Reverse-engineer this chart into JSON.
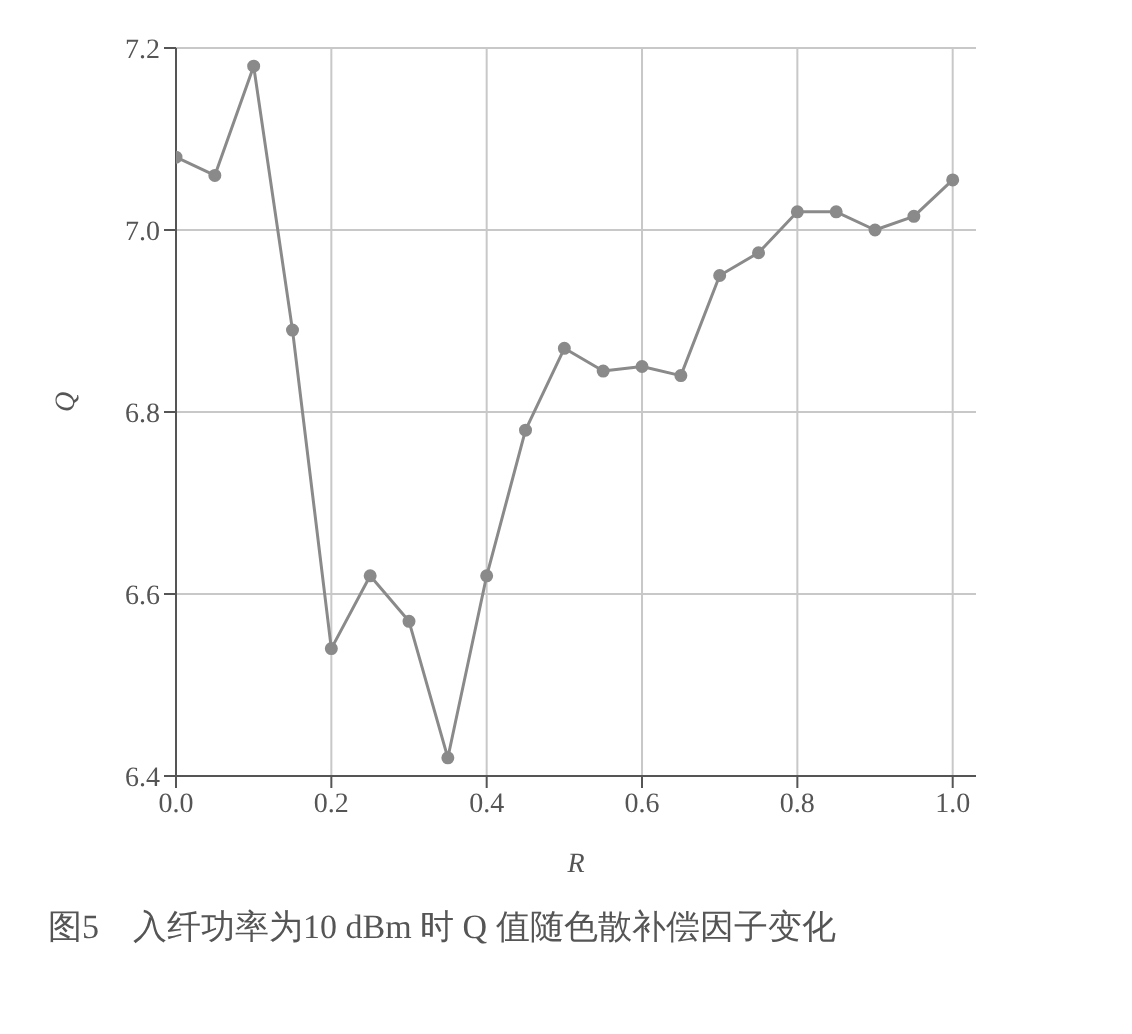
{
  "chart_data": {
    "type": "line",
    "xlabel": "R",
    "ylabel": "Q",
    "annotations": [
      "图5　入纤功率为10 dBm 时 Q 值随色散补偿因子变化"
    ],
    "x": [
      0,
      0.05,
      0.1,
      0.15,
      0.2,
      0.25,
      0.3,
      0.35,
      0.4,
      0.45,
      0.5,
      0.55,
      0.6,
      0.65,
      0.7,
      0.75,
      0.8,
      0.85,
      0.9,
      0.95,
      1.0
    ],
    "series": [
      {
        "color": "#8a8a8a",
        "values": [
          7.08,
          7.06,
          7.18,
          6.89,
          6.54,
          6.62,
          6.57,
          6.42,
          6.62,
          6.78,
          6.87,
          6.845,
          6.85,
          6.84,
          6.95,
          6.975,
          7.02,
          7.02,
          7.0,
          7.015,
          7.055
        ]
      }
    ],
    "xlim": [
      0,
      1.03
    ],
    "ylim": [
      6.4,
      7.2
    ],
    "xticks": [
      {
        "value": 0,
        "label": "0.0"
      },
      {
        "value": 0.2,
        "label": "0.2"
      },
      {
        "value": 0.4,
        "label": "0.4"
      },
      {
        "value": 0.6,
        "label": "0.6"
      },
      {
        "value": 0.8,
        "label": "0.8"
      },
      {
        "value": 1,
        "label": "1.0"
      }
    ],
    "yticks": [
      {
        "value": 6.4,
        "label": "6.4"
      },
      {
        "value": 6.6,
        "label": "6.6"
      },
      {
        "value": 6.8,
        "label": "6.8"
      },
      {
        "value": 7.0,
        "label": "7.0"
      },
      {
        "value": 7.2,
        "label": "7.2"
      }
    ],
    "grid": true,
    "marker": "circle",
    "line_style": "solid"
  }
}
